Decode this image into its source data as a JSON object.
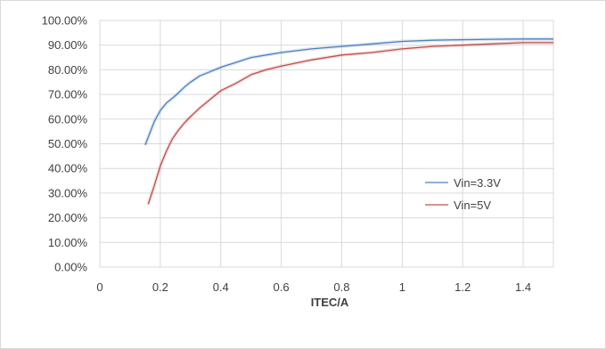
{
  "chart_data": {
    "type": "line",
    "title": "",
    "xlabel": "ITEC/A",
    "ylabel": "",
    "xlim": [
      0,
      1.5
    ],
    "ylim": [
      0,
      100
    ],
    "x_ticks": [
      "0",
      "0.2",
      "0.4",
      "0.6",
      "0.8",
      "1",
      "1.2",
      "1.4"
    ],
    "y_ticks": [
      "0.00%",
      "10.00%",
      "20.00%",
      "30.00%",
      "40.00%",
      "50.00%",
      "60.00%",
      "70.00%",
      "80.00%",
      "90.00%",
      "100.00%"
    ],
    "grid": true,
    "legend_position": "right-center",
    "series": [
      {
        "name": "Vin=3.3V",
        "color": "#4f81bd",
        "x": [
          0.15,
          0.18,
          0.2,
          0.22,
          0.25,
          0.28,
          0.3,
          0.33,
          0.36,
          0.4,
          0.45,
          0.5,
          0.55,
          0.6,
          0.7,
          0.8,
          0.9,
          1.0,
          1.1,
          1.2,
          1.3,
          1.4,
          1.5
        ],
        "y": [
          49.5,
          59,
          63.5,
          66.5,
          69.5,
          73,
          75,
          77.5,
          79,
          81,
          83,
          85,
          86,
          87,
          88.5,
          89.5,
          90.5,
          91.5,
          92,
          92.2,
          92.4,
          92.5,
          92.5
        ]
      },
      {
        "name": "Vin=5V",
        "color": "#c0504d",
        "x": [
          0.16,
          0.18,
          0.2,
          0.22,
          0.24,
          0.26,
          0.28,
          0.3,
          0.33,
          0.36,
          0.4,
          0.45,
          0.5,
          0.55,
          0.6,
          0.7,
          0.8,
          0.9,
          1.0,
          1.1,
          1.2,
          1.3,
          1.4,
          1.5
        ],
        "y": [
          25.5,
          33,
          41,
          47,
          52,
          55.5,
          58.5,
          61,
          64.5,
          67.5,
          71.5,
          74.5,
          78,
          80,
          81.5,
          84,
          86,
          87,
          88.5,
          89.5,
          90,
          90.5,
          91,
          91
        ]
      }
    ]
  }
}
